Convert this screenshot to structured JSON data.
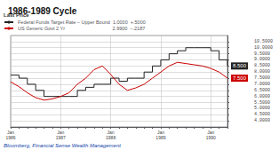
{
  "chart_data": {
    "type": "line",
    "title": "1986-1989 Cycle",
    "footnote": "Bloomberg, Financial Sense Wealth Management",
    "legend_title": "Last Price",
    "categories": [
      "Jan\n1986",
      null,
      null,
      null,
      null,
      null,
      "Jan\n1987",
      null,
      null,
      null,
      null,
      null,
      "Jan\n1988",
      null,
      null,
      null,
      null,
      null,
      "Jan\n1989",
      null,
      null,
      null,
      null,
      null,
      "Jan\n1990",
      null,
      null
    ],
    "series": [
      {
        "name": "Federal Funds Target Rate – Upper Bound  1.0000  +.5000",
        "color": "#222222",
        "line_style": "step",
        "values": [
          7.75,
          7.5,
          7.0,
          6.5,
          6.0,
          6.0,
          6.0,
          6.0,
          6.5,
          6.75,
          7.0,
          7.0,
          7.5,
          7.25,
          7.5,
          7.5,
          8.0,
          8.5,
          9.0,
          9.5,
          9.75,
          10.0,
          10.0,
          10.0,
          9.75,
          9.0,
          8.5
        ],
        "value_labels": [
          null,
          null,
          null,
          null,
          null,
          null,
          null,
          null,
          null,
          null,
          null,
          null,
          null,
          null,
          null,
          null,
          null,
          null,
          null,
          null,
          null,
          null,
          null,
          null,
          null,
          null,
          "8.500"
        ]
      },
      {
        "name": "US Generic Govt 2 Yr                                   2.9900  –.2187",
        "color": "#cc0000",
        "values": [
          7.2,
          6.8,
          6.3,
          5.9,
          5.7,
          5.8,
          6.0,
          6.3,
          7.0,
          7.5,
          8.2,
          8.5,
          7.8,
          7.0,
          6.5,
          6.7,
          7.0,
          7.5,
          8.0,
          8.5,
          8.8,
          8.7,
          8.6,
          8.5,
          8.3,
          8.0,
          7.5
        ],
        "value_labels": [
          null,
          null,
          null,
          null,
          null,
          null,
          null,
          null,
          null,
          null,
          null,
          null,
          null,
          null,
          null,
          null,
          null,
          null,
          null,
          null,
          null,
          null,
          null,
          null,
          null,
          null,
          "7.500"
        ]
      }
    ],
    "ylim": [
      3.5,
      11.0
    ],
    "yticks": [
      {
        "value": 4.0,
        "label": "4.0000"
      },
      {
        "value": 4.5,
        "label": "4.5000"
      },
      {
        "value": 5.0,
        "label": "5.0000"
      },
      {
        "value": 5.5,
        "label": "5.5000"
      },
      {
        "value": 6.0,
        "label": "6.0000"
      },
      {
        "value": 6.5,
        "label": "6.5000"
      },
      {
        "value": 7.0,
        "label": "7.0000"
      },
      {
        "value": 7.5,
        "label": "7.5000"
      },
      {
        "value": 8.0,
        "label": "8.0000"
      },
      {
        "value": 8.5,
        "label": "8.5000"
      },
      {
        "value": 9.0,
        "label": "9.0000"
      },
      {
        "value": 9.5,
        "label": "9.5000"
      },
      {
        "value": 10.0,
        "label": "10.0000"
      },
      {
        "value": 10.5,
        "label": "10.5000"
      }
    ],
    "grid": true,
    "legend": "upper left"
  }
}
